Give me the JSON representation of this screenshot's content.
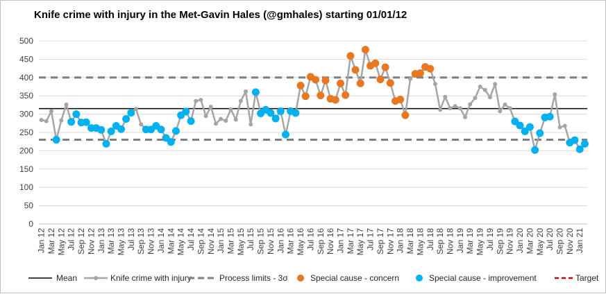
{
  "chart_data": {
    "type": "line",
    "title": "Knife crime with injury in the Met-Gavin Hales (@gmhales) starting 01/01/12",
    "ylim": [
      0,
      500
    ],
    "yticks": [
      0,
      50,
      100,
      150,
      200,
      250,
      300,
      350,
      400,
      450,
      500
    ],
    "xtick_labels": [
      "Jan 12",
      "Mar 12",
      "May 12",
      "Jul 12",
      "Sep 12",
      "Nov 12",
      "Jan 13",
      "Mar 13",
      "May 13",
      "Jul 13",
      "Sep 13",
      "Nov 13",
      "Jan 14",
      "Mar 14",
      "May 14",
      "Jul 14",
      "Sep 14",
      "Nov 14",
      "Jan 15",
      "Mar 15",
      "May 15",
      "Jul 15",
      "Sep 15",
      "Nov 15",
      "Jan 16",
      "Mar 16",
      "May 16",
      "Jul 16",
      "Sep 16",
      "Nov 16",
      "Jan 17",
      "Mar 17",
      "May 17",
      "Jul 17",
      "Sep 17",
      "Nov 17",
      "Jan 18",
      "Mar 18",
      "May 18",
      "Jul 18",
      "Sep 18",
      "Nov 18",
      "Jan 19",
      "Mar 19",
      "May 19",
      "Jul 19",
      "Sep 19",
      "Nov 19",
      "Jan 20",
      "Mar 20",
      "May 20",
      "Jul 20",
      "Sep 20",
      "Nov 20",
      "Jan 21"
    ],
    "series": [
      {
        "name": "Knife crime with injury",
        "values": [
          284,
          281,
          308,
          230,
          283,
          326,
          279,
          300,
          277,
          278,
          262,
          262,
          257,
          219,
          253,
          268,
          259,
          287,
          304,
          314,
          272,
          258,
          258,
          268,
          258,
          235,
          224,
          254,
          297,
          307,
          281,
          336,
          339,
          295,
          320,
          274,
          287,
          282,
          313,
          285,
          336,
          362,
          272,
          360,
          302,
          312,
          303,
          288,
          308,
          244,
          308,
          303,
          378,
          349,
          402,
          394,
          351,
          392,
          342,
          339,
          384,
          352,
          459,
          421,
          384,
          476,
          432,
          439,
          395,
          428,
          385,
          336,
          340,
          297,
          396,
          410,
          412,
          429,
          424,
          382,
          312,
          347,
          316,
          322,
          316,
          292,
          327,
          344,
          375,
          366,
          346,
          382,
          308,
          326,
          316,
          280,
          269,
          253,
          265,
          202,
          248,
          291,
          293,
          354,
          264,
          268,
          222,
          229,
          204,
          219
        ]
      }
    ],
    "reference_lines": {
      "mean": 315,
      "upper_process_limit": 400,
      "lower_process_limit": 230
    },
    "special_cause_concern_indices": [
      52,
      53,
      54,
      55,
      56,
      57,
      58,
      59,
      60,
      61,
      62,
      63,
      64,
      65,
      66,
      67,
      68,
      69,
      70,
      71,
      72,
      73,
      75,
      76,
      77,
      78
    ],
    "special_cause_improvement_indices": [
      3,
      6,
      7,
      8,
      9,
      10,
      11,
      12,
      13,
      14,
      15,
      16,
      17,
      18,
      21,
      22,
      23,
      24,
      25,
      26,
      27,
      28,
      29,
      30,
      43,
      44,
      45,
      46,
      47,
      48,
      49,
      50,
      51,
      95,
      96,
      97,
      98,
      99,
      100,
      101,
      102,
      106,
      107,
      108,
      109
    ],
    "legend": [
      {
        "key": "mean",
        "label": "Mean"
      },
      {
        "key": "series",
        "label": "Knife crime with injury"
      },
      {
        "key": "limits",
        "label": "Process limits - 3σ"
      },
      {
        "key": "concern",
        "label": "Special cause - concern"
      },
      {
        "key": "improvement",
        "label": "Special cause  - improvement"
      },
      {
        "key": "target",
        "label": "Target"
      }
    ],
    "legend_position": "bottom",
    "colors": {
      "series": "#a5a5a5",
      "mean": "#000000",
      "limits": "#7f7f7f",
      "concern": "#e87722",
      "improvement": "#00b0f0",
      "target": "#c00000",
      "axis": "#bfbfbf",
      "grid": "#d9d9d9"
    }
  }
}
